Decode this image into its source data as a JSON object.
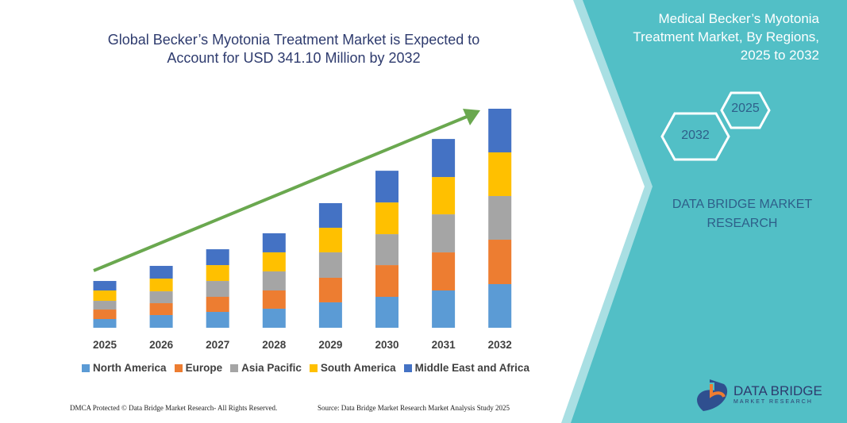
{
  "chart_data": {
    "type": "bar",
    "stacked": true,
    "title": "Global Becker’s Myotonia Treatment Market is Expected to Account for USD 341.10 Million by 2032",
    "categories": [
      "2025",
      "2026",
      "2027",
      "2028",
      "2029",
      "2030",
      "2031",
      "2032"
    ],
    "series": [
      {
        "name": "North America",
        "color": "#5b9bd5",
        "values": [
          13.6,
          19.8,
          24.7,
          29.7,
          39.6,
          48.2,
          58.1,
          68.0
        ]
      },
      {
        "name": "Europe",
        "color": "#ed7d31",
        "values": [
          14.8,
          18.5,
          23.5,
          28.4,
          38.3,
          49.4,
          59.3,
          69.2
        ]
      },
      {
        "name": "Asia Pacific",
        "color": "#a5a5a5",
        "values": [
          13.6,
          18.5,
          24.7,
          29.7,
          39.6,
          48.2,
          59.3,
          68.0
        ]
      },
      {
        "name": "South America",
        "color": "#ffc000",
        "values": [
          16.1,
          19.8,
          24.7,
          29.7,
          38.3,
          49.4,
          58.1,
          68.0
        ]
      },
      {
        "name": "Middle East and Africa",
        "color": "#4472c4",
        "values": [
          14.8,
          19.8,
          24.7,
          29.7,
          38.3,
          49.4,
          59.3,
          68.0
        ]
      }
    ],
    "trend_color": "#6aa84f"
  },
  "panel": {
    "title": "Medical Becker’s Myotonia Treatment Market, By Regions, 2025 to 2032",
    "hexagons": [
      "2025",
      "2032"
    ],
    "brand": "DATA BRIDGE MARKET RESEARCH"
  },
  "logo": {
    "name": "DATA BRIDGE",
    "tagline": "MARKET RESEARCH"
  },
  "footer": {
    "left": "DMCA Protected © Data Bridge Market Research- All Rights Reserved.",
    "right": "Source: Data Bridge Market Research Market Analysis Study 2025"
  }
}
